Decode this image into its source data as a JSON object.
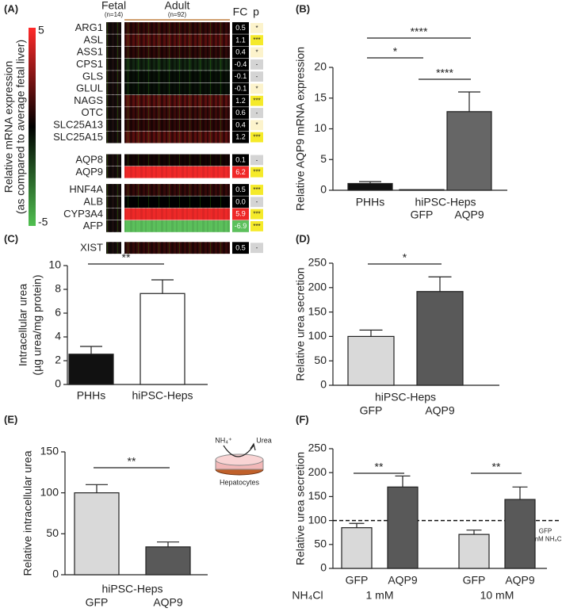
{
  "chart_data": [
    {
      "type": "heatmap",
      "panel_label": "(A)",
      "colorbar_label": [
        "Relative mRNA expression",
        "(as compared to average fetal liver)"
      ],
      "clim": [
        -5,
        5
      ],
      "colorbar_ticks": [
        5,
        -5
      ],
      "columns": [
        {
          "name": "Fetal",
          "n": "(n=14)"
        },
        {
          "name": "Adult",
          "n": "(n=92)"
        }
      ],
      "fc_header": "FC",
      "p_header": "p",
      "rows": [
        "ARG1",
        "ASL",
        "ASS1",
        "CPS1",
        "GLS",
        "GLUL",
        "NAGS",
        "OTC",
        "SLC25A13",
        "SLC25A15",
        "AQP8",
        "AQP9",
        "HNF4A",
        "ALB",
        "CYP3A4",
        "AFP",
        "XIST"
      ],
      "values": [
        0.5,
        1.1,
        0.4,
        -0.4,
        -0.1,
        -0.1,
        1.2,
        0.6,
        0.4,
        1.2,
        0.1,
        6.2,
        0.5,
        0,
        5.9,
        -6.9,
        0.5
      ],
      "value_labels": [
        "0.5",
        "1.1",
        "0.4",
        "-0.4",
        "-0.1",
        "-0.1",
        "1.2",
        "0.6",
        "0.4",
        "1.2",
        "0.1",
        "6.2",
        "0.5",
        "0.0",
        "5.9",
        "-6.9",
        "0.5"
      ],
      "p_labels": [
        "*",
        "***",
        "*",
        "-",
        "-",
        "*",
        "***",
        "-",
        "*",
        "***",
        "-",
        "***",
        "***",
        "-",
        "***",
        "***",
        "-"
      ]
    },
    {
      "type": "bar",
      "panel_label": "(B)",
      "ylabel": [
        "Relative AQP9 mRNA expression"
      ],
      "categories": [
        "PHHs",
        "GFP",
        "AQP9"
      ],
      "values": [
        1.1,
        0.1,
        12.8
      ],
      "errors": [
        0.3,
        null,
        3.2
      ],
      "colors": [
        "#111111",
        "#ffffff",
        "#666666"
      ],
      "ylim": [
        0,
        20
      ],
      "yticks": [
        0,
        5,
        10,
        15,
        20
      ],
      "group_labels": [
        {
          "text": "hiPSC-Heps",
          "span": [
            1,
            2
          ]
        }
      ],
      "significance": [
        {
          "text": "****",
          "pair": [
            0,
            2
          ]
        },
        {
          "text": "*",
          "pair": [
            0,
            1
          ]
        },
        {
          "text": "****",
          "pair": [
            1,
            2
          ]
        }
      ]
    },
    {
      "type": "bar",
      "panel_label": "(C)",
      "ylabel": [
        "Intracellular urea",
        "(µg urea/mg protein)"
      ],
      "categories": [
        "PHHs",
        "hiPSC-Heps"
      ],
      "values": [
        2.55,
        7.65
      ],
      "errors": [
        0.65,
        1.15
      ],
      "colors": [
        "#111111",
        "#ffffff"
      ],
      "ylim": [
        0,
        10
      ],
      "yticks": [
        0,
        2,
        4,
        6,
        8,
        10
      ],
      "significance": [
        {
          "text": "**",
          "pair": [
            0,
            1
          ]
        }
      ]
    },
    {
      "type": "bar",
      "panel_label": "(D)",
      "ylabel": [
        "Relative urea secretion"
      ],
      "categories": [
        "GFP",
        "AQP9"
      ],
      "values": [
        100,
        192
      ],
      "errors": [
        13,
        30
      ],
      "colors": [
        "#d9d9d9",
        "#595959"
      ],
      "ylim": [
        0,
        250
      ],
      "yticks": [
        0,
        50,
        100,
        150,
        200,
        250
      ],
      "group_labels": [
        {
          "text": "hiPSC-Heps",
          "span": [
            0,
            1
          ]
        }
      ],
      "significance": [
        {
          "text": "*",
          "pair": [
            0,
            1
          ]
        }
      ]
    },
    {
      "type": "bar",
      "panel_label": "(E)",
      "ylabel": [
        "Relative intracellular urea"
      ],
      "categories": [
        "GFP",
        "AQP9"
      ],
      "values": [
        100,
        34
      ],
      "errors": [
        10,
        6
      ],
      "colors": [
        "#d9d9d9",
        "#595959"
      ],
      "ylim": [
        0,
        150
      ],
      "yticks": [
        0,
        50,
        100,
        150
      ],
      "group_labels": [
        {
          "text": "hiPSC-Heps",
          "span": [
            0,
            1
          ]
        }
      ],
      "significance": [
        {
          "text": "**",
          "pair": [
            0,
            1
          ]
        }
      ],
      "inset": {
        "input": "NH₄⁺",
        "output": "Urea",
        "caption": "Hepatocytes"
      }
    },
    {
      "type": "bar",
      "panel_label": "(F)",
      "ylabel": [
        "Relative urea secretion"
      ],
      "categories": [
        "GFP",
        "AQP9",
        "GFP",
        "AQP9"
      ],
      "values": [
        85,
        170,
        71,
        144
      ],
      "errors": [
        9,
        23,
        9,
        26
      ],
      "colors": [
        "#d9d9d9",
        "#595959",
        "#d9d9d9",
        "#595959"
      ],
      "ylim": [
        0,
        250
      ],
      "yticks": [
        0,
        50,
        100,
        150,
        200,
        250
      ],
      "group_labels": [
        {
          "text": "1 mM",
          "span": [
            0,
            1
          ]
        },
        {
          "text": "10 mM",
          "span": [
            2,
            3
          ]
        }
      ],
      "row_label": "NH₄Cl",
      "reference_line": {
        "value": 100,
        "label": [
          "GFP",
          "0 mM NH₄Cl"
        ]
      },
      "significance": [
        {
          "text": "**",
          "pair": [
            0,
            1
          ]
        },
        {
          "text": "**",
          "pair": [
            2,
            3
          ]
        }
      ]
    }
  ]
}
